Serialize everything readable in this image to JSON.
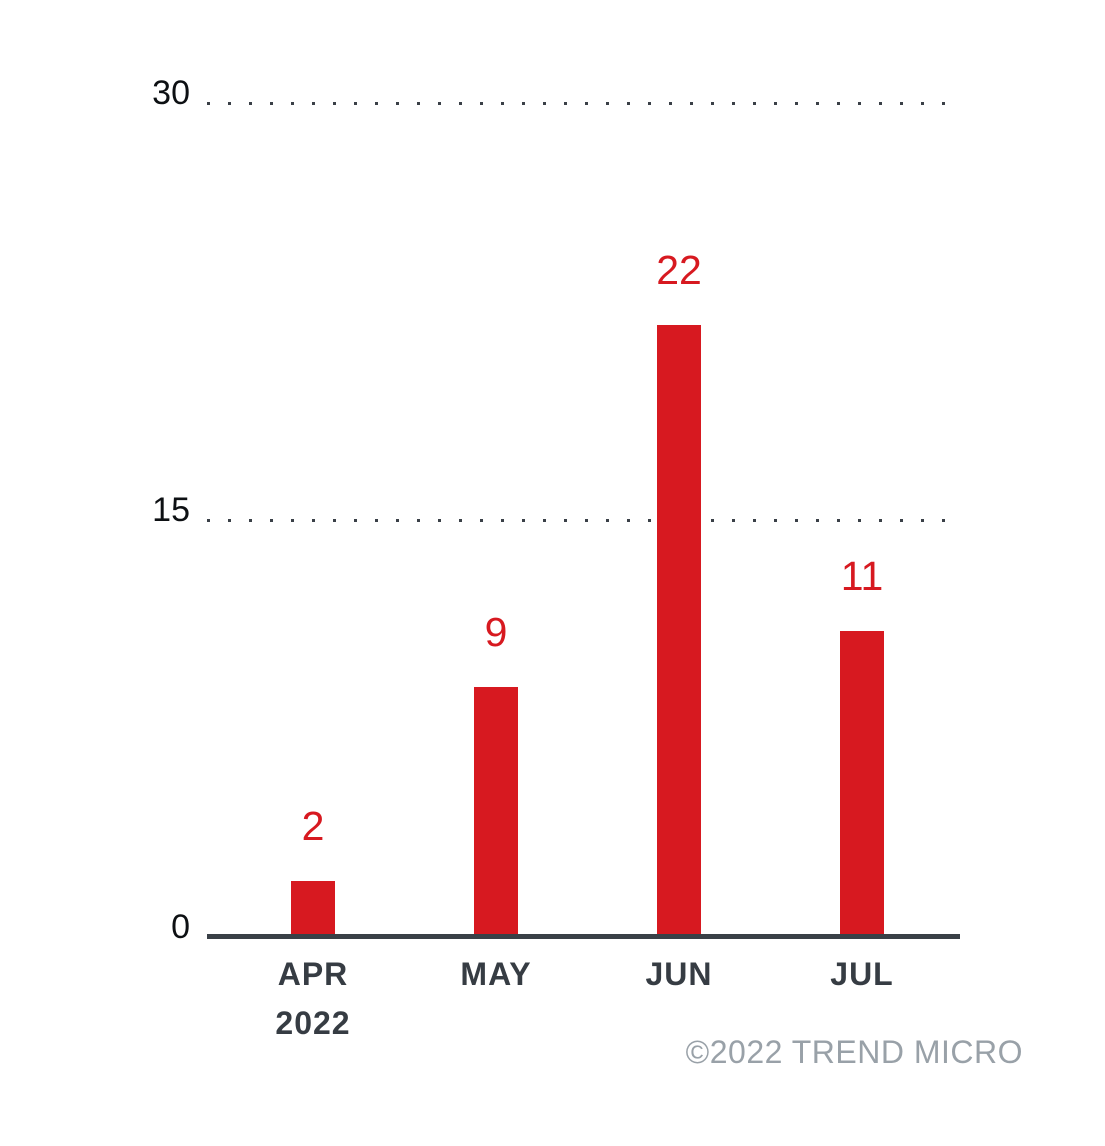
{
  "chart_data": {
    "type": "bar",
    "title": "",
    "xlabel": "",
    "ylabel": "",
    "categories": [
      "APR 2022",
      "MAY",
      "JUN",
      "JUL"
    ],
    "values": [
      2,
      9,
      22,
      11
    ],
    "value_labels": [
      "2",
      "9",
      "22",
      "11"
    ],
    "ylim": [
      0,
      30
    ],
    "yticks": [
      0,
      15,
      30
    ],
    "grid": "horizontal-dotted",
    "legend": "none",
    "colors": {
      "bar": "#d71920",
      "value_label": "#d71920",
      "axis": "#3a4047",
      "grid_dot": "#3a4047",
      "y_tick_label": "#0d1013",
      "category_label": "#363c43",
      "footer": "#99a1a8"
    },
    "footer": "©2022 TREND MICRO"
  }
}
